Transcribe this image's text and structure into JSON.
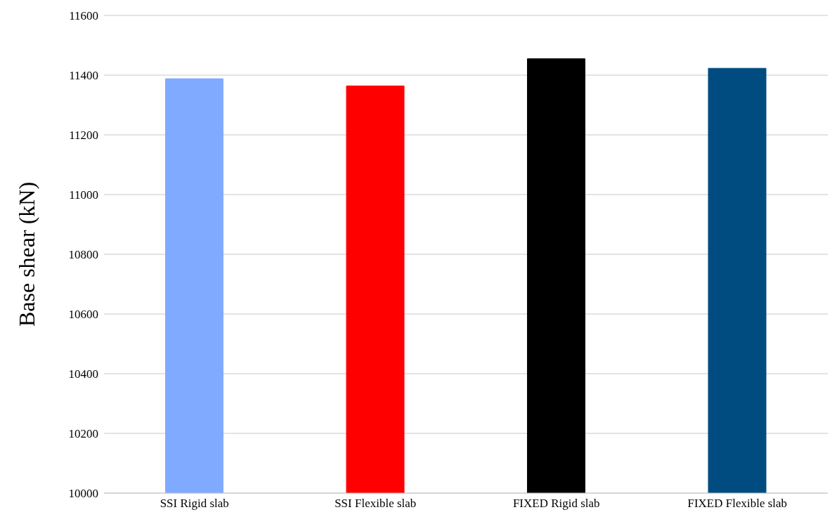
{
  "chart_data": {
    "type": "bar",
    "ylabel": "Base shear (kN)",
    "categories": [
      "SSI Rigid slab",
      "SSI Flexible slab",
      "FIXED Rigid slab",
      "FIXED Flexible slab"
    ],
    "values": [
      11388,
      11364,
      11455,
      11423
    ],
    "colors": [
      "#7faaff",
      "#ff0000",
      "#000000",
      "#004c80"
    ],
    "ylim": [
      10000,
      11600
    ],
    "yticks": [
      10000,
      10200,
      10400,
      10600,
      10800,
      11000,
      11200,
      11400,
      11600
    ],
    "grid": "y"
  }
}
